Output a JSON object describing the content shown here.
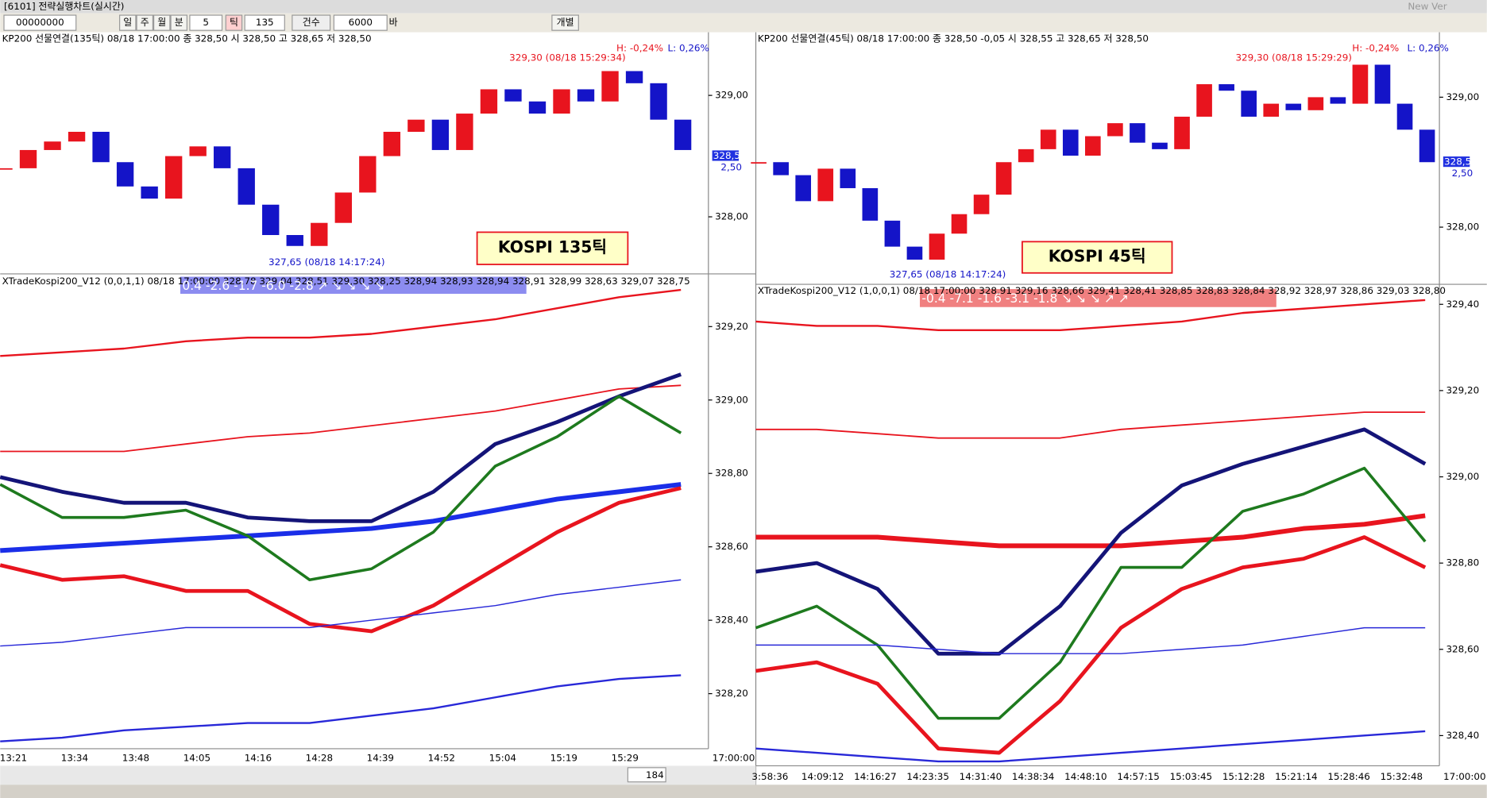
{
  "window": {
    "title": "[6101] 전략실행차트(실시간)",
    "version": "New Ver"
  },
  "toolbar": {
    "code": "00000000",
    "buttons": [
      "일",
      "주",
      "월",
      "분"
    ],
    "period": "5",
    "tick_button": "틱",
    "tick_count": "135",
    "count_mode": "건수",
    "bars": "6000",
    "bars_unit": "바",
    "individual": "개별"
  },
  "panels": [
    {
      "price_chart": {
        "type": "candlestick",
        "header": "KP200 선물연결(135틱) 08/18 17:00:00  종 328,50   시 328,50 고 328,65 저 328,50",
        "closes": [
          328.4,
          328.55,
          328.62,
          328.7,
          328.45,
          328.25,
          328.15,
          328.5,
          328.58,
          328.4,
          328.1,
          327.85,
          327.76,
          327.95,
          328.2,
          328.5,
          328.7,
          328.8,
          328.55,
          328.85,
          329.05,
          328.95,
          328.85,
          329.05,
          328.95,
          329.2,
          329.1,
          328.8,
          328.55
        ],
        "up_color": "#e8141e",
        "down_color": "#1414c8",
        "ylim": [
          327.53,
          329.52
        ],
        "yticks": [
          {
            "value": 329,
            "label": "329,00"
          },
          {
            "value": 328,
            "label": "328,00"
          }
        ],
        "high_label": "329,30 (08/18 15:29:34)",
        "high_pct": "H: -0,24%",
        "low_pct": "L: 0,26%",
        "low_label": "327,65 (08/18 14:17:24)",
        "last_price": {
          "value": 328.5,
          "label": "328,50"
        },
        "change": "2,50",
        "badge": "KOSPI 135틱"
      },
      "indicator": {
        "type": "line",
        "header": "XTradeKospi200_V12  (0,0,1,1) 08/18 17:00:00 328,78 329,04 328,51 329,30 328,25 328,94 328,93 328,94 328,91 328,99 328,63 329,07 328,75",
        "signals": "0.4   -2.6   -1.7   -6.0   -2.8   ↗   ↘   ↘   ↘   ↘",
        "signals_color": "#8c8cf0",
        "ylim": [
          328.05,
          329.31
        ],
        "yticks": [
          {
            "value": 329.2,
            "label": "329,20"
          },
          {
            "value": 329,
            "label": "329,00"
          },
          {
            "value": 328.8,
            "label": "328,80"
          },
          {
            "value": 328.6,
            "label": "328,60"
          },
          {
            "value": 328.4,
            "label": "328,40"
          },
          {
            "value": 328.2,
            "label": "328,20"
          }
        ],
        "series": [
          {
            "color": "#e8141e",
            "values": [
              329.12,
              329.13,
              329.14,
              329.16,
              329.17,
              329.17,
              329.18,
              329.2,
              329.22,
              329.25,
              329.28,
              329.3
            ]
          },
          {
            "color": "#e8141e",
            "values": [
              328.86,
              328.86,
              328.86,
              328.88,
              328.9,
              328.91,
              328.93,
              328.95,
              328.97,
              329.0,
              329.03,
              329.04
            ]
          },
          {
            "color": "#1a2ee8",
            "values": [
              328.59,
              328.6,
              328.61,
              328.62,
              328.63,
              328.64,
              328.65,
              328.67,
              328.7,
              328.73,
              328.75,
              328.77
            ]
          },
          {
            "color": "#141478",
            "values": [
              328.79,
              328.75,
              328.72,
              328.72,
              328.68,
              328.67,
              328.67,
              328.75,
              328.88,
              328.94,
              329.01,
              329.07
            ]
          },
          {
            "color": "#e8141e",
            "values": [
              328.55,
              328.51,
              328.52,
              328.48,
              328.48,
              328.39,
              328.37,
              328.44,
              328.54,
              328.64,
              328.72,
              328.76
            ]
          },
          {
            "color": "#1e7a1e",
            "values": [
              328.77,
              328.68,
              328.68,
              328.7,
              328.63,
              328.51,
              328.54,
              328.64,
              328.82,
              328.9,
              329.01,
              328.91
            ]
          },
          {
            "color": "#2828d8",
            "values": [
              328.33,
              328.34,
              328.36,
              328.38,
              328.38,
              328.38,
              328.4,
              328.42,
              328.44,
              328.47,
              328.49,
              328.51
            ]
          },
          {
            "color": "#2828d8",
            "values": [
              328.07,
              328.08,
              328.1,
              328.11,
              328.12,
              328.12,
              328.14,
              328.16,
              328.19,
              328.22,
              328.24,
              328.25
            ]
          }
        ],
        "widths": [
          2,
          1.5,
          5,
          4,
          4,
          3,
          1.2,
          2
        ],
        "xticks": [
          "13:21",
          "13:34",
          "13:48",
          "14:05",
          "14:16",
          "14:28",
          "14:39",
          "14:52",
          "15:04",
          "15:19",
          "15:29"
        ],
        "end_time": "17:00:00",
        "scroll_count": "184"
      }
    },
    {
      "price_chart": {
        "type": "candlestick",
        "header": "KP200 선물연결(45틱) 08/18 17:00:00  종 328,50 -0,05   시 328,55 고 328,65 저 328,50",
        "closes": [
          328.5,
          328.4,
          328.2,
          328.45,
          328.3,
          328.05,
          327.85,
          327.75,
          327.95,
          328.1,
          328.25,
          328.5,
          328.6,
          328.75,
          328.55,
          328.7,
          328.8,
          328.65,
          328.6,
          328.85,
          329.1,
          329.05,
          328.85,
          328.95,
          328.9,
          329.0,
          328.95,
          329.25,
          328.95,
          328.75,
          328.5
        ],
        "up_color": "#e8141e",
        "down_color": "#1414c8",
        "ylim": [
          327.56,
          329.5
        ],
        "yticks": [
          {
            "value": 329,
            "label": "329,00"
          },
          {
            "value": 328,
            "label": "328,00"
          }
        ],
        "high_label": "329,30 (08/18 15:29:29)",
        "high_pct": "H: -0,24%",
        "low_pct": "L: 0,26%",
        "low_label": "327,65 (08/18 14:17:24)",
        "last_price": {
          "value": 328.5,
          "label": "328,50"
        },
        "change": "2,50",
        "badge": "KOSPI 45틱"
      },
      "indicator": {
        "type": "line",
        "header": "XTradeKospi200_V12  (1,0,0,1) 08/18 17:00:00 328,91 329,16 328,66 329,41 328,41 328,85 328,83 328,84 328,92 328,97 328,86 329,03 328,80",
        "signals": "-0.4   -7.1   -1.6   -3.1   -1.8   ↘   ↘   ↘   ↗   ↗",
        "signals_color": "#f08080",
        "ylim": [
          328.33,
          329.42
        ],
        "yticks": [
          {
            "value": 329.4,
            "label": "329,40"
          },
          {
            "value": 329.2,
            "label": "329,20"
          },
          {
            "value": 329,
            "label": "329,00"
          },
          {
            "value": 328.8,
            "label": "328,80"
          },
          {
            "value": 328.6,
            "label": "328,60"
          },
          {
            "value": 328.4,
            "label": "328,40"
          }
        ],
        "series": [
          {
            "color": "#e8141e",
            "values": [
              329.36,
              329.35,
              329.35,
              329.34,
              329.34,
              329.34,
              329.35,
              329.36,
              329.38,
              329.39,
              329.4,
              329.41
            ]
          },
          {
            "color": "#e8141e",
            "values": [
              329.11,
              329.11,
              329.1,
              329.09,
              329.09,
              329.09,
              329.11,
              329.12,
              329.13,
              329.14,
              329.15,
              329.15
            ]
          },
          {
            "color": "#e8141e",
            "values": [
              328.86,
              328.86,
              328.86,
              328.85,
              328.84,
              328.84,
              328.84,
              328.85,
              328.86,
              328.88,
              328.89,
              328.91
            ]
          },
          {
            "color": "#141478",
            "values": [
              328.78,
              328.8,
              328.74,
              328.59,
              328.59,
              328.7,
              328.87,
              328.98,
              329.03,
              329.07,
              329.11,
              329.03
            ]
          },
          {
            "color": "#e8141e",
            "values": [
              328.55,
              328.57,
              328.52,
              328.37,
              328.36,
              328.48,
              328.65,
              328.74,
              328.79,
              328.81,
              328.86,
              328.79
            ]
          },
          {
            "color": "#1e7a1e",
            "values": [
              328.65,
              328.7,
              328.61,
              328.44,
              328.44,
              328.57,
              328.79,
              328.79,
              328.92,
              328.96,
              329.02,
              328.85
            ]
          },
          {
            "color": "#2828d8",
            "values": [
              328.61,
              328.61,
              328.61,
              328.6,
              328.59,
              328.59,
              328.59,
              328.6,
              328.61,
              328.63,
              328.65,
              328.65
            ]
          },
          {
            "color": "#2828d8",
            "values": [
              328.37,
              328.36,
              328.35,
              328.34,
              328.34,
              328.35,
              328.36,
              328.37,
              328.38,
              328.39,
              328.4,
              328.41
            ]
          }
        ],
        "widths": [
          2,
          1.5,
          5,
          4,
          4,
          3,
          1.2,
          2
        ],
        "xticks": [
          "3:58:36",
          "14:09:12",
          "14:16:27",
          "14:23:35",
          "14:31:40",
          "14:38:34",
          "14:48:10",
          "14:57:15",
          "15:03:45",
          "15:12:28",
          "15:21:14",
          "15:28:46",
          "15:32:48"
        ],
        "end_time": "17:00:00"
      }
    }
  ]
}
